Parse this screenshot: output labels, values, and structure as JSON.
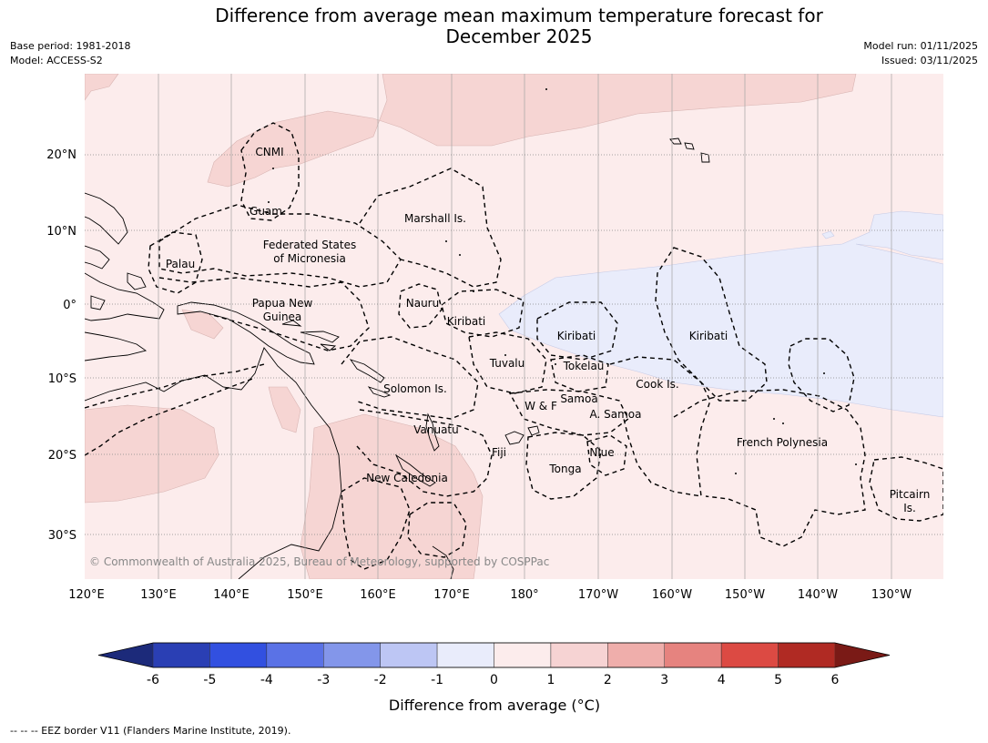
{
  "title": {
    "line1": "Difference from average mean maximum temperature forecast for",
    "line2": "December 2025"
  },
  "meta": {
    "base_period": "Base period: 1981-2018",
    "model": "Model: ACCESS-S2",
    "model_run": "Model run: 01/11/2025",
    "issued": "Issued: 03/11/2025"
  },
  "axes": {
    "lon_labels": [
      "120°E",
      "130°E",
      "140°E",
      "150°E",
      "160°E",
      "170°E",
      "180°",
      "170°W",
      "160°W",
      "150°W",
      "140°W",
      "130°W"
    ],
    "lat_labels": [
      "20°N",
      "10°N",
      "0°",
      "10°S",
      "20°S",
      "30°S"
    ]
  },
  "regions": [
    {
      "label": "CNMI"
    },
    {
      "label": "Guam"
    },
    {
      "label": "Marshall Is."
    },
    {
      "label": "Federated States"
    },
    {
      "label": "of Micronesia"
    },
    {
      "label": "Palau"
    },
    {
      "label": "Papua New"
    },
    {
      "label": "Guinea"
    },
    {
      "label": "Nauru"
    },
    {
      "label": "Kiribati"
    },
    {
      "label": "Kiribati"
    },
    {
      "label": "Kiribati"
    },
    {
      "label": "Tuvalu"
    },
    {
      "label": "Tokelau"
    },
    {
      "label": "Cook Is."
    },
    {
      "label": "Solomon Is."
    },
    {
      "label": "Samoa"
    },
    {
      "label": "W & F"
    },
    {
      "label": "A. Samoa"
    },
    {
      "label": "Vanuatu"
    },
    {
      "label": "Fiji"
    },
    {
      "label": "Niue"
    },
    {
      "label": "French Polynesia"
    },
    {
      "label": "Tonga"
    },
    {
      "label": "New Caledonia"
    },
    {
      "label": "Pitcairn"
    },
    {
      "label": "Is."
    }
  ],
  "copyright": "© Commonwealth of Australia 2025, Bureau of Meteorology, supported by COSPPac",
  "colorbar": {
    "title": "Difference from average (°C)",
    "ticks": [
      "-6",
      "-5",
      "-4",
      "-3",
      "-2",
      "-1",
      "0",
      "1",
      "2",
      "3",
      "4",
      "5",
      "6"
    ],
    "colors": [
      "#1c2a7a",
      "#2a3fb4",
      "#3250e0",
      "#5a72e6",
      "#8396ea",
      "#bdc6f4",
      "#e9ecfb",
      "#fcecec",
      "#f6d3d3",
      "#efaeab",
      "#e6837f",
      "#dc4a43",
      "#b02a23",
      "#7a1a16"
    ]
  },
  "footer": "--  --  -- EEZ border V11 (Flanders Marine Institute, 2019)."
}
